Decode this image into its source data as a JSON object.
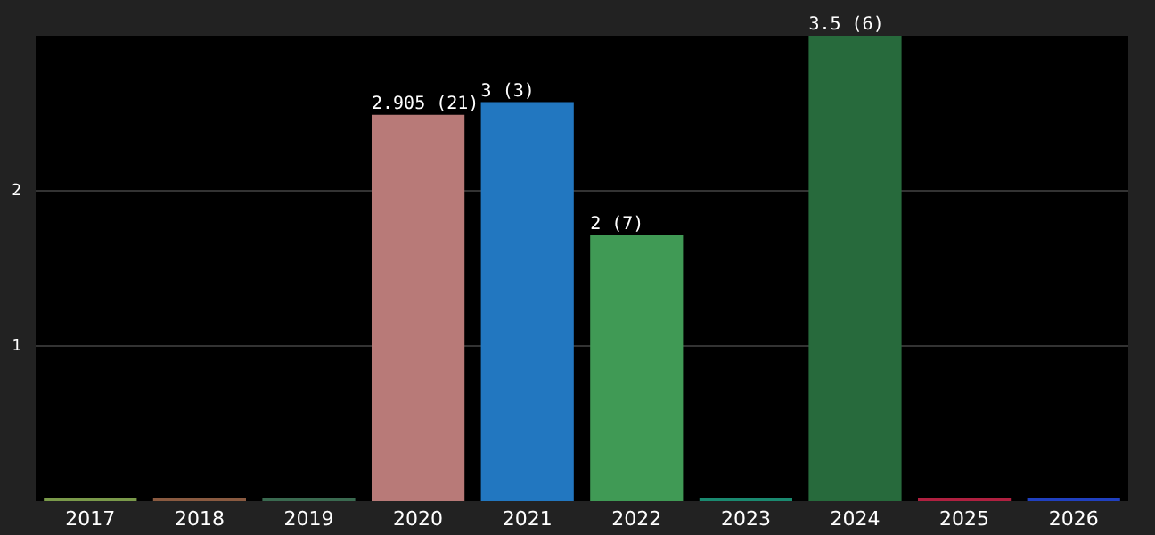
{
  "chart_data": {
    "type": "bar",
    "categories": [
      "2017",
      "2018",
      "2019",
      "2020",
      "2021",
      "2022",
      "2023",
      "2024",
      "2025",
      "2026"
    ],
    "values": [
      0,
      0,
      0,
      2.905,
      3,
      2,
      0,
      3.5,
      0,
      0
    ],
    "colors": [
      "#7a9a4a",
      "#8a5a40",
      "#3a6a50",
      "#b87a78",
      "#2277c0",
      "#409a55",
      "#1a8a70",
      "#276a3c",
      "#b02040",
      "#2040c0"
    ],
    "value_labels": [
      null,
      null,
      null,
      "2.905 (21)",
      "3 (3)",
      "2 (7)",
      null,
      "3.5 (6)",
      null,
      null
    ],
    "ylim": [
      0,
      3.5
    ],
    "yticks": [
      {
        "value": 1.1667,
        "label": "1"
      },
      {
        "value": 2.3333,
        "label": "2"
      }
    ],
    "grid": "y"
  }
}
